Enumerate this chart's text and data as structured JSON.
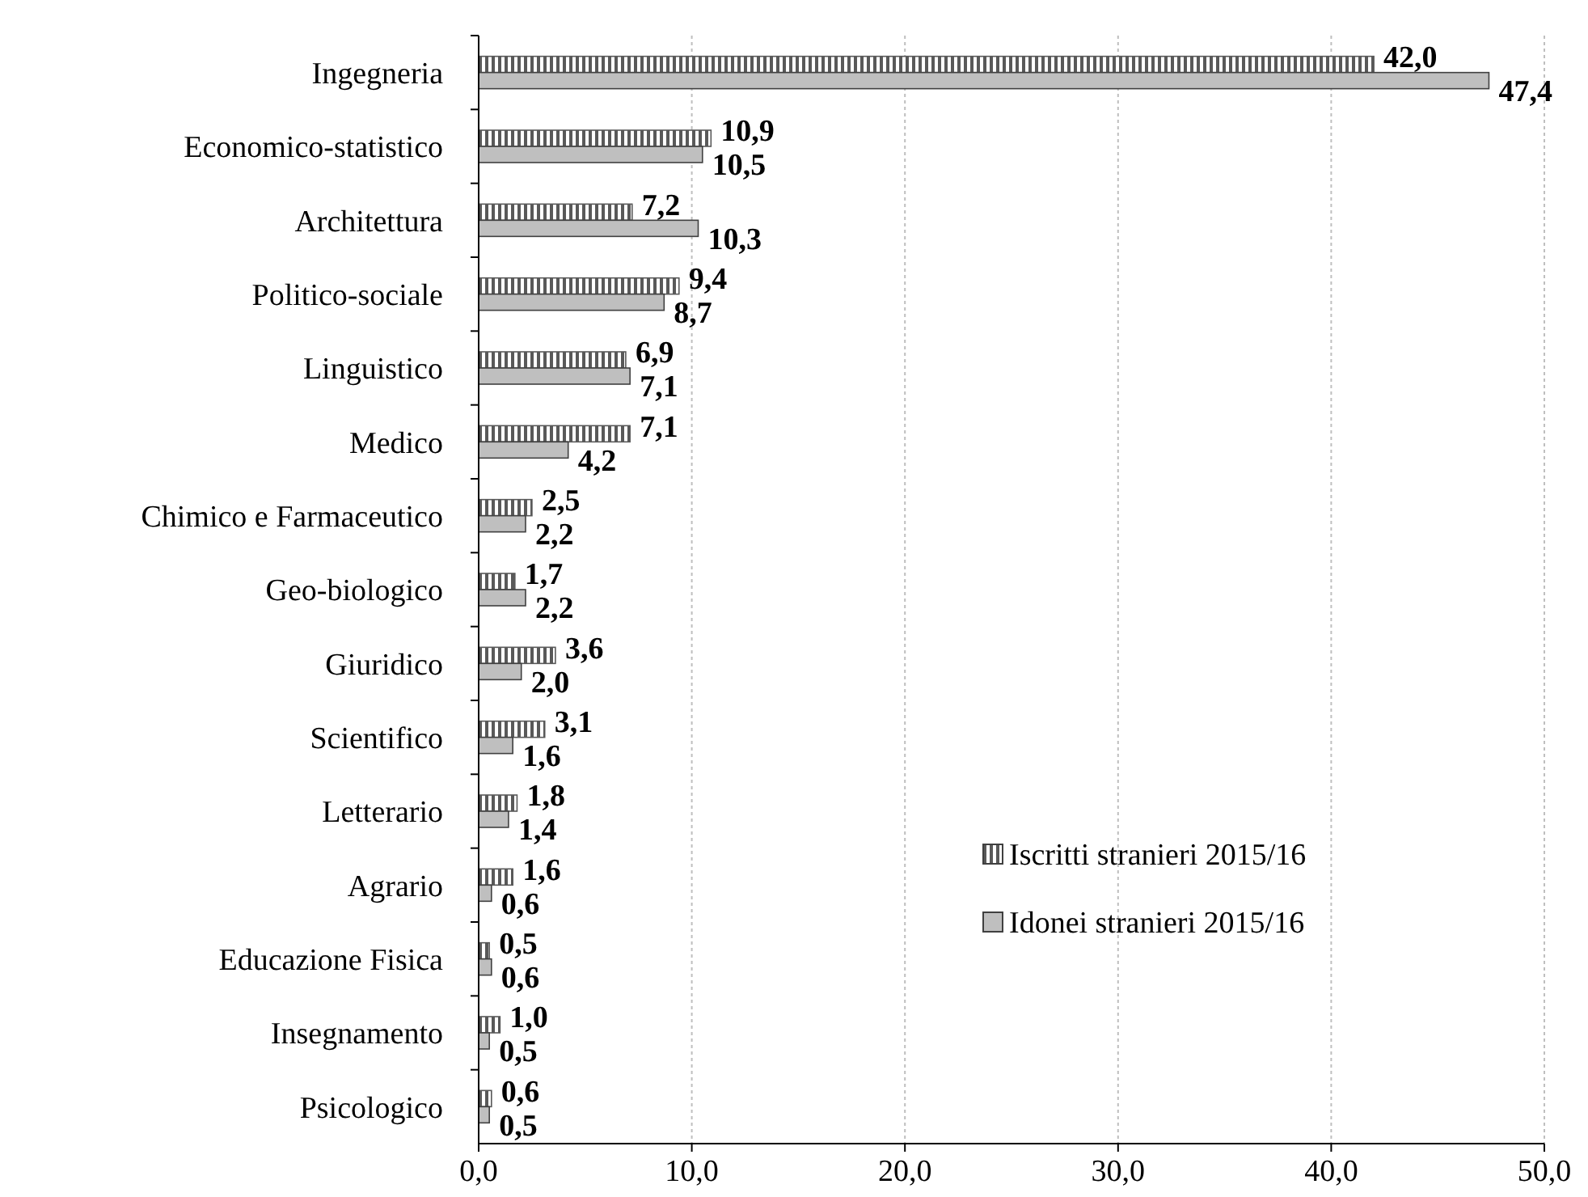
{
  "chart_data": {
    "type": "bar",
    "orientation": "horizontal",
    "categories": [
      "Ingegneria",
      "Economico-statistico",
      "Architettura",
      "Politico-sociale",
      "Linguistico",
      "Medico",
      "Chimico e Farmaceutico",
      "Geo-biologico",
      "Giuridico",
      "Scientifico",
      "Letterario",
      "Agrario",
      "Educazione Fisica",
      "Insegnamento",
      "Psicologico"
    ],
    "series": [
      {
        "name": "Iscritti stranieri 2015/16",
        "color": "#595959",
        "values": [
          42.0,
          10.9,
          7.2,
          9.4,
          6.9,
          7.1,
          2.5,
          1.7,
          3.6,
          3.1,
          1.8,
          1.6,
          0.5,
          1.0,
          0.6
        ],
        "value_labels": [
          "42,0",
          "10,9",
          "7,2",
          "9,4",
          "6,9",
          "7,1",
          "2,5",
          "1,7",
          "3,6",
          "3,1",
          "1,8",
          "1,6",
          "0,5",
          "1,0",
          "0,6"
        ]
      },
      {
        "name": "Idonei stranieri 2015/16",
        "color": "#bfbfbf",
        "values": [
          47.4,
          10.5,
          10.3,
          8.7,
          7.1,
          4.2,
          2.2,
          2.2,
          2.0,
          1.6,
          1.4,
          0.6,
          0.6,
          0.5,
          0.5
        ],
        "value_labels": [
          "47,4",
          "10,5",
          "10,3",
          "8,7",
          "7,1",
          "4,2",
          "2,2",
          "2,2",
          "2,0",
          "1,6",
          "1,4",
          "0,6",
          "0,6",
          "0,5",
          "0,5"
        ]
      }
    ],
    "xlim": [
      0,
      50
    ],
    "xticks": [
      {
        "value": 0,
        "label": "0,0"
      },
      {
        "value": 10,
        "label": "10,0"
      },
      {
        "value": 20,
        "label": "20,0"
      },
      {
        "value": 30,
        "label": "30,0"
      },
      {
        "value": 40,
        "label": "40,0"
      },
      {
        "value": 50,
        "label": "50,0"
      }
    ],
    "grid": "x",
    "legend": "bottom right"
  }
}
